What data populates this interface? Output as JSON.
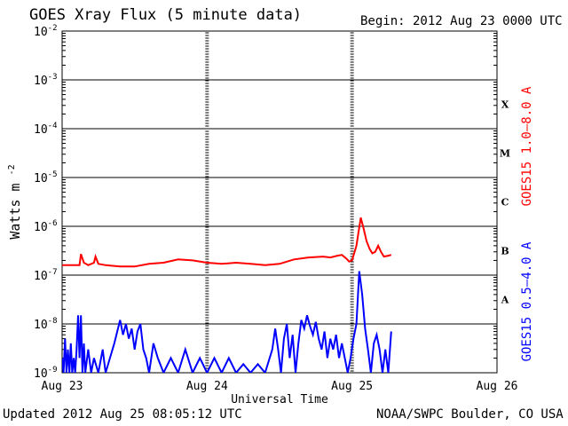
{
  "header": {
    "title": "GOES Xray Flux (5 minute data)",
    "begin": "Begin:  2012 Aug 23 0000 UTC"
  },
  "footer": {
    "updated": "Updated 2012 Aug 25 08:05:12 UTC",
    "credit": "NOAA/SWPC Boulder, CO USA"
  },
  "chart_data": {
    "type": "line",
    "title": "GOES Xray Flux (5 minute data)",
    "xlabel": "Universal Time",
    "ylabel": "Watts m",
    "ylabel_superscript": "-2",
    "y_scale": "log",
    "ylim_exponents": [
      -9,
      -2
    ],
    "y_tick_mantissa": "10",
    "y_ticks": [
      {
        "exp": "-2",
        "value": 0.01
      },
      {
        "exp": "-3",
        "value": 0.001
      },
      {
        "exp": "-4",
        "value": 0.0001
      },
      {
        "exp": "-5",
        "value": 1e-05
      },
      {
        "exp": "-6",
        "value": 1e-06
      },
      {
        "exp": "-7",
        "value": 1e-07
      },
      {
        "exp": "-8",
        "value": 1e-08
      },
      {
        "exp": "-9",
        "value": 1e-09
      }
    ],
    "x_range_days": [
      0,
      3
    ],
    "x_ticks": [
      {
        "label": "Aug 23",
        "day": 0
      },
      {
        "label": "Aug 24",
        "day": 1
      },
      {
        "label": "Aug 25",
        "day": 2
      },
      {
        "label": "Aug 26",
        "day": 3
      }
    ],
    "flare_classes": [
      {
        "label": "X",
        "log_center": -3.5
      },
      {
        "label": "M",
        "log_center": -4.5
      },
      {
        "label": "C",
        "log_center": -5.5
      },
      {
        "label": "B",
        "log_center": -6.5
      },
      {
        "label": "A",
        "log_center": -7.5
      }
    ],
    "grid_horizontal": true,
    "series": [
      {
        "name": "GOES15 1.0–8.0 A",
        "color": "#ff0000",
        "points": [
          [
            0.0,
            1.6e-07
          ],
          [
            0.05,
            1.6e-07
          ],
          [
            0.12,
            1.6e-07
          ],
          [
            0.13,
            2.7e-07
          ],
          [
            0.15,
            1.8e-07
          ],
          [
            0.18,
            1.6e-07
          ],
          [
            0.22,
            1.8e-07
          ],
          [
            0.23,
            2.4e-07
          ],
          [
            0.25,
            1.7e-07
          ],
          [
            0.3,
            1.6e-07
          ],
          [
            0.4,
            1.5e-07
          ],
          [
            0.5,
            1.5e-07
          ],
          [
            0.6,
            1.7e-07
          ],
          [
            0.7,
            1.8e-07
          ],
          [
            0.8,
            2.1e-07
          ],
          [
            0.9,
            2e-07
          ],
          [
            1.0,
            1.8e-07
          ],
          [
            1.1,
            1.7e-07
          ],
          [
            1.2,
            1.8e-07
          ],
          [
            1.3,
            1.7e-07
          ],
          [
            1.4,
            1.6e-07
          ],
          [
            1.5,
            1.7e-07
          ],
          [
            1.6,
            2.1e-07
          ],
          [
            1.7,
            2.3e-07
          ],
          [
            1.8,
            2.4e-07
          ],
          [
            1.85,
            2.3e-07
          ],
          [
            1.9,
            2.5e-07
          ],
          [
            1.93,
            2.6e-07
          ],
          [
            1.96,
            2.2e-07
          ],
          [
            1.98,
            1.9e-07
          ],
          [
            2.0,
            2e-07
          ],
          [
            2.03,
            4e-07
          ],
          [
            2.06,
            1.5e-06
          ],
          [
            2.08,
            9e-07
          ],
          [
            2.1,
            5e-07
          ],
          [
            2.12,
            3.5e-07
          ],
          [
            2.14,
            2.8e-07
          ],
          [
            2.16,
            3e-07
          ],
          [
            2.18,
            4e-07
          ],
          [
            2.2,
            3e-07
          ],
          [
            2.22,
            2.4e-07
          ],
          [
            2.25,
            2.5e-07
          ],
          [
            2.27,
            2.6e-07
          ]
        ]
      },
      {
        "name": "GOES15 0.5–4.0 A",
        "color": "#0000ff",
        "points": [
          [
            0.0,
            2e-09
          ],
          [
            0.01,
            1e-09
          ],
          [
            0.02,
            5e-09
          ],
          [
            0.03,
            1e-09
          ],
          [
            0.04,
            3e-09
          ],
          [
            0.05,
            1e-09
          ],
          [
            0.06,
            4e-09
          ],
          [
            0.07,
            1e-09
          ],
          [
            0.08,
            2e-09
          ],
          [
            0.09,
            1e-09
          ],
          [
            0.1,
            3e-09
          ],
          [
            0.11,
            1.5e-08
          ],
          [
            0.12,
            2e-09
          ],
          [
            0.13,
            1.5e-08
          ],
          [
            0.14,
            1e-09
          ],
          [
            0.15,
            4e-09
          ],
          [
            0.16,
            1e-09
          ],
          [
            0.18,
            3e-09
          ],
          [
            0.2,
            1e-09
          ],
          [
            0.22,
            2e-09
          ],
          [
            0.25,
            1e-09
          ],
          [
            0.28,
            3e-09
          ],
          [
            0.3,
            1e-09
          ],
          [
            0.33,
            2e-09
          ],
          [
            0.36,
            4e-09
          ],
          [
            0.4,
            1.2e-08
          ],
          [
            0.42,
            6e-09
          ],
          [
            0.44,
            1e-08
          ],
          [
            0.46,
            5e-09
          ],
          [
            0.48,
            8e-09
          ],
          [
            0.5,
            3e-09
          ],
          [
            0.52,
            7e-09
          ],
          [
            0.54,
            1e-08
          ],
          [
            0.56,
            3e-09
          ],
          [
            0.58,
            2e-09
          ],
          [
            0.6,
            1e-09
          ],
          [
            0.63,
            4e-09
          ],
          [
            0.66,
            2e-09
          ],
          [
            0.7,
            1e-09
          ],
          [
            0.75,
            2e-09
          ],
          [
            0.8,
            1e-09
          ],
          [
            0.85,
            3e-09
          ],
          [
            0.9,
            1e-09
          ],
          [
            0.95,
            2e-09
          ],
          [
            1.0,
            1e-09
          ],
          [
            1.05,
            2e-09
          ],
          [
            1.1,
            1e-09
          ],
          [
            1.15,
            2e-09
          ],
          [
            1.2,
            1e-09
          ],
          [
            1.25,
            1.5e-09
          ],
          [
            1.3,
            1e-09
          ],
          [
            1.35,
            1.5e-09
          ],
          [
            1.4,
            1e-09
          ],
          [
            1.45,
            3e-09
          ],
          [
            1.47,
            8e-09
          ],
          [
            1.49,
            3e-09
          ],
          [
            1.51,
            1e-09
          ],
          [
            1.53,
            5e-09
          ],
          [
            1.55,
            1e-08
          ],
          [
            1.57,
            2e-09
          ],
          [
            1.59,
            6e-09
          ],
          [
            1.61,
            1e-09
          ],
          [
            1.63,
            4e-09
          ],
          [
            1.65,
            1.2e-08
          ],
          [
            1.67,
            8e-09
          ],
          [
            1.69,
            1.5e-08
          ],
          [
            1.71,
            9e-09
          ],
          [
            1.73,
            6e-09
          ],
          [
            1.75,
            1.1e-08
          ],
          [
            1.77,
            5e-09
          ],
          [
            1.79,
            3e-09
          ],
          [
            1.81,
            7e-09
          ],
          [
            1.83,
            2e-09
          ],
          [
            1.85,
            5e-09
          ],
          [
            1.87,
            3e-09
          ],
          [
            1.89,
            6e-09
          ],
          [
            1.91,
            2e-09
          ],
          [
            1.93,
            4e-09
          ],
          [
            1.95,
            2e-09
          ],
          [
            1.97,
            1e-09
          ],
          [
            1.99,
            2e-09
          ],
          [
            2.01,
            5e-09
          ],
          [
            2.03,
            1e-08
          ],
          [
            2.05,
            1.2e-07
          ],
          [
            2.07,
            4e-08
          ],
          [
            2.09,
            8e-09
          ],
          [
            2.11,
            3e-09
          ],
          [
            2.13,
            1e-09
          ],
          [
            2.15,
            4e-09
          ],
          [
            2.17,
            6e-09
          ],
          [
            2.19,
            3e-09
          ],
          [
            2.21,
            1e-09
          ],
          [
            2.23,
            3e-09
          ],
          [
            2.25,
            1e-09
          ],
          [
            2.27,
            7e-09
          ]
        ]
      }
    ]
  }
}
